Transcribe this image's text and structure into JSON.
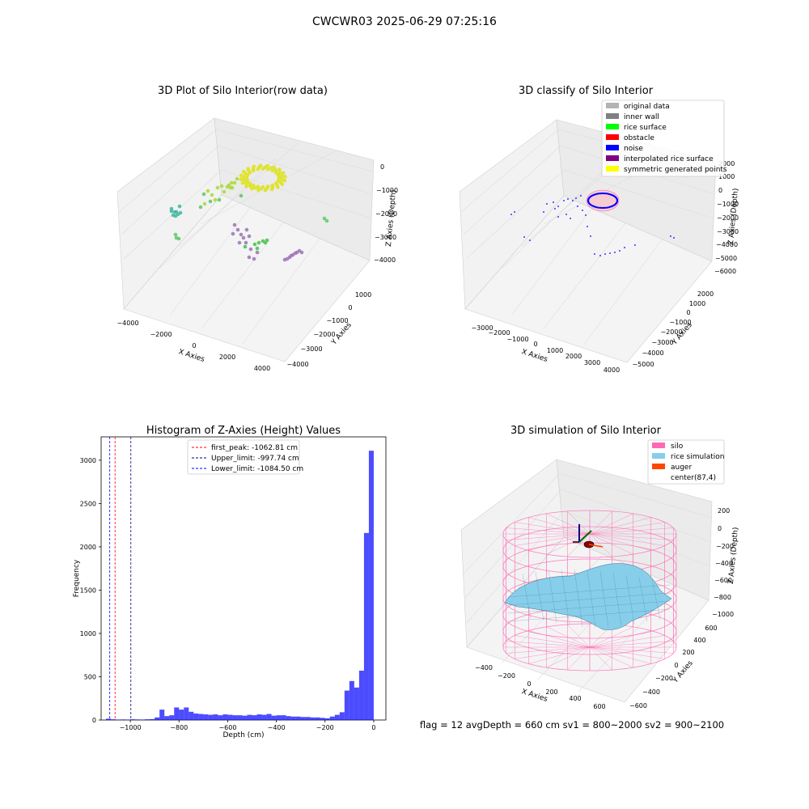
{
  "suptitle": "CWCWR03 2025-06-29 07:25:16",
  "status_line": "flag = 12   avgDepth = 660 cm   sv1 = 800~2000  sv2 = 900~2100",
  "chart_data": [
    {
      "type": "scatter",
      "projection": "3d",
      "title": "3D Plot of Silo Interior(row data)",
      "xlabel": "X Axies",
      "ylabel": "Y Axies",
      "zlabel": "Z Axies (Depth)",
      "x_ticks": [
        "−4000",
        "−2000",
        "0",
        "2000",
        "4000"
      ],
      "y_ticks": [
        "1000",
        "0",
        "−1000",
        "−2000",
        "−3000",
        "−4000"
      ],
      "z_ticks": [
        "0",
        "−1000",
        "−2000",
        "−3000",
        "−4000"
      ],
      "grid": true,
      "colormap": "viridis",
      "clusters": [
        {
          "color": "#3eb6a0",
          "points": 9
        },
        {
          "color": "#5cc863",
          "points": 8
        },
        {
          "color": "#a8db34",
          "points": 14
        },
        {
          "color": "#dde318",
          "points": 60
        },
        {
          "color": "#9b72b8",
          "points": 22
        },
        {
          "color": "#5ec962",
          "points": 2
        }
      ]
    },
    {
      "type": "scatter",
      "projection": "3d",
      "title": "3D classify of Silo Interior",
      "legend": {
        "position": "top-right",
        "entries": [
          {
            "label": "original data",
            "color": "#b3b3b3"
          },
          {
            "label": "inner wall",
            "color": "#808080"
          },
          {
            "label": "rice surface",
            "color": "#00ff00"
          },
          {
            "label": "obstacle",
            "color": "#ff0000"
          },
          {
            "label": "noise",
            "color": "#0000ff"
          },
          {
            "label": "interpolated rice surface",
            "color": "#800080"
          },
          {
            "label": "symmetric generated points",
            "color": "#ffff00"
          }
        ]
      },
      "xlabel": "X Axies",
      "ylabel": "Y Axies",
      "zlabel": "Z Axies (Depth)",
      "x_ticks": [
        "−3000",
        "−2000",
        "−1000",
        "0",
        "1000",
        "2000",
        "3000",
        "4000"
      ],
      "y_ticks": [
        "2000",
        "1000",
        "0",
        "−1000",
        "−2000",
        "−3000",
        "−4000",
        "−5000"
      ],
      "z_ticks": [
        "2000",
        "1000",
        "0",
        "−1000",
        "−2000",
        "−3000",
        "−4000",
        "−5000",
        "−6000"
      ],
      "grid": true
    },
    {
      "type": "bar",
      "title": "Histogram of Z-Axies (Height) Values",
      "xlabel": "Depth (cm)",
      "ylabel": "Frequency",
      "xlim": [
        -1120,
        50
      ],
      "ylim": [
        0,
        3270
      ],
      "x_ticks": [
        -1000,
        -800,
        -600,
        -400,
        -200,
        0
      ],
      "y_ticks": [
        0,
        500,
        1000,
        1500,
        2000,
        2500,
        3000
      ],
      "bar_color": "#0000ff",
      "bin_width": 20,
      "bins": [
        {
          "x": -1100,
          "count": 15
        },
        {
          "x": -1080,
          "count": 8
        },
        {
          "x": -1060,
          "count": 5
        },
        {
          "x": -1040,
          "count": 6
        },
        {
          "x": -1020,
          "count": 5
        },
        {
          "x": -1000,
          "count": 8
        },
        {
          "x": -980,
          "count": 6
        },
        {
          "x": -960,
          "count": 5
        },
        {
          "x": -940,
          "count": 8
        },
        {
          "x": -920,
          "count": 10
        },
        {
          "x": -900,
          "count": 30
        },
        {
          "x": -880,
          "count": 120
        },
        {
          "x": -860,
          "count": 45
        },
        {
          "x": -840,
          "count": 55
        },
        {
          "x": -820,
          "count": 145
        },
        {
          "x": -800,
          "count": 120
        },
        {
          "x": -780,
          "count": 145
        },
        {
          "x": -760,
          "count": 95
        },
        {
          "x": -740,
          "count": 75
        },
        {
          "x": -720,
          "count": 70
        },
        {
          "x": -700,
          "count": 65
        },
        {
          "x": -680,
          "count": 60
        },
        {
          "x": -660,
          "count": 65
        },
        {
          "x": -640,
          "count": 55
        },
        {
          "x": -620,
          "count": 65
        },
        {
          "x": -600,
          "count": 60
        },
        {
          "x": -580,
          "count": 55
        },
        {
          "x": -560,
          "count": 55
        },
        {
          "x": -540,
          "count": 50
        },
        {
          "x": -520,
          "count": 60
        },
        {
          "x": -500,
          "count": 55
        },
        {
          "x": -480,
          "count": 65
        },
        {
          "x": -460,
          "count": 60
        },
        {
          "x": -440,
          "count": 70
        },
        {
          "x": -420,
          "count": 50
        },
        {
          "x": -400,
          "count": 55
        },
        {
          "x": -380,
          "count": 55
        },
        {
          "x": -360,
          "count": 45
        },
        {
          "x": -340,
          "count": 40
        },
        {
          "x": -320,
          "count": 40
        },
        {
          "x": -300,
          "count": 35
        },
        {
          "x": -280,
          "count": 35
        },
        {
          "x": -260,
          "count": 30
        },
        {
          "x": -240,
          "count": 30
        },
        {
          "x": -220,
          "count": 25
        },
        {
          "x": -200,
          "count": 20
        },
        {
          "x": -180,
          "count": 40
        },
        {
          "x": -160,
          "count": 60
        },
        {
          "x": -140,
          "count": 90
        },
        {
          "x": -120,
          "count": 340
        },
        {
          "x": -100,
          "count": 450
        },
        {
          "x": -80,
          "count": 375
        },
        {
          "x": -60,
          "count": 570
        },
        {
          "x": -40,
          "count": 2160
        },
        {
          "x": -20,
          "count": 3110
        }
      ],
      "vlines": [
        {
          "label": "first_peak: -1062.81 cm",
          "x": -1062.81,
          "color": "#ff0000"
        },
        {
          "label": "Upper_limit: -997.74 cm",
          "x": -997.74,
          "color": "#00008b"
        },
        {
          "label": "Lower_limit: -1084.50 cm",
          "x": -1084.5,
          "color": "#0000ff"
        }
      ],
      "legend_position": "top-center"
    },
    {
      "type": "surface",
      "projection": "3d",
      "title": "3D simulation of Silo Interior",
      "legend": {
        "position": "top-right",
        "entries": [
          {
            "label": "silo",
            "color": "#ff69b4"
          },
          {
            "label": "rice simulation",
            "color": "#87ceeb"
          },
          {
            "label": "auger",
            "color": "#ff4500"
          },
          {
            "label": "center(87,4)",
            "color": "#ffffff"
          }
        ]
      },
      "xlabel": "X Axies",
      "ylabel": "Y Axies",
      "zlabel": "Z Axies (Depth)",
      "x_ticks": [
        "−400",
        "−200",
        "0",
        "200",
        "400",
        "600"
      ],
      "y_ticks": [
        "600",
        "400",
        "200",
        "0",
        "−200",
        "−400",
        "−600"
      ],
      "z_ticks": [
        "200",
        "0",
        "−200",
        "−400",
        "−600",
        "−800",
        "−1000"
      ],
      "grid": true
    }
  ]
}
